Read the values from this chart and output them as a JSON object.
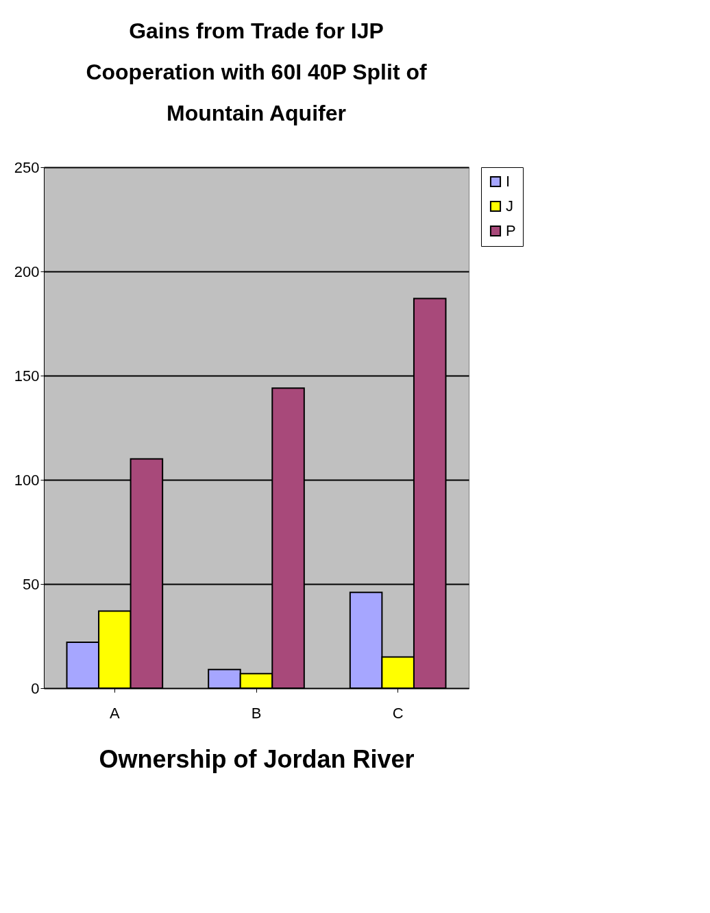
{
  "chart_data": {
    "type": "bar",
    "title": "Gains from Trade for IJP Cooperation with 60I 40P Split of Mountain Aquifer",
    "xlabel": "Ownership of Jordan River",
    "categories": [
      "A",
      "B",
      "C"
    ],
    "series": [
      {
        "name": "I",
        "color": "#a6a6ff",
        "values": [
          22,
          9,
          46
        ]
      },
      {
        "name": "J",
        "color": "#ffff00",
        "values": [
          37,
          7,
          15
        ]
      },
      {
        "name": "P",
        "color": "#a8497a",
        "values": [
          110,
          144,
          187
        ]
      }
    ],
    "ylim": [
      0,
      250
    ],
    "yticks": [
      0,
      50,
      100,
      150,
      200,
      250
    ],
    "grid": "y",
    "legend": "top right"
  }
}
